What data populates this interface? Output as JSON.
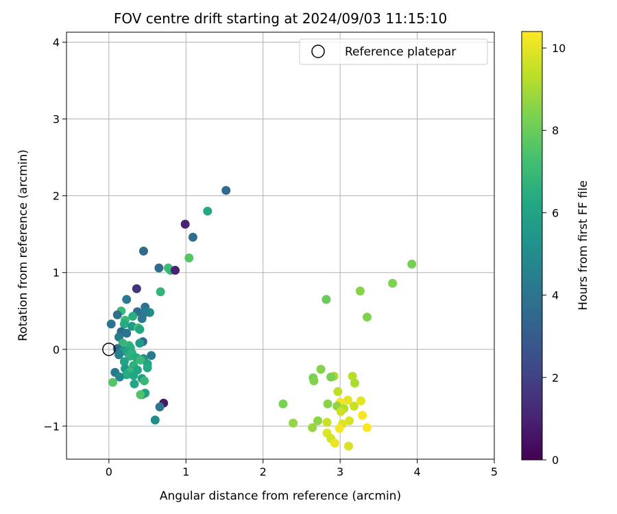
{
  "chart_data": {
    "type": "scatter",
    "title": "FOV centre drift starting at 2024/09/03 11:15:10",
    "xlabel": "Angular distance from reference (arcmin)",
    "ylabel": "Rotation from reference (arcmin)",
    "xlim": [
      -0.55,
      5.0
    ],
    "ylim": [
      -1.43,
      4.13
    ],
    "xticks": [
      0,
      1,
      2,
      3,
      4,
      5
    ],
    "yticks": [
      -1,
      0,
      1,
      2,
      3,
      4
    ],
    "xtick_labels": [
      "0",
      "1",
      "2",
      "3",
      "4",
      "5"
    ],
    "ytick_labels": [
      "−1",
      "0",
      "1",
      "2",
      "3",
      "4"
    ],
    "grid": true,
    "colormap": "viridis",
    "colorbar": {
      "label": "Hours from first FF file",
      "range": [
        0,
        10.4
      ],
      "ticks": [
        0,
        2,
        4,
        6,
        8,
        10
      ],
      "tick_labels": [
        "0",
        "2",
        "4",
        "6",
        "8",
        "10"
      ]
    },
    "legend": {
      "placement": "upper right",
      "entries": [
        {
          "label": "Reference platepar",
          "marker": "open-circle"
        }
      ]
    },
    "reference_point": {
      "x": 0,
      "y": 0
    },
    "points": [
      {
        "x": 1.52,
        "y": 2.07,
        "c": 3.6
      },
      {
        "x": 1.28,
        "y": 1.8,
        "c": 6.3
      },
      {
        "x": 0.99,
        "y": 1.63,
        "c": 1.0
      },
      {
        "x": 1.09,
        "y": 1.46,
        "c": 3.8
      },
      {
        "x": 0.45,
        "y": 1.28,
        "c": 3.6
      },
      {
        "x": 1.04,
        "y": 1.19,
        "c": 7.6
      },
      {
        "x": 0.65,
        "y": 1.06,
        "c": 3.6
      },
      {
        "x": 0.77,
        "y": 1.06,
        "c": 7.2
      },
      {
        "x": 0.8,
        "y": 1.03,
        "c": 6.9
      },
      {
        "x": 0.86,
        "y": 1.03,
        "c": 1.0
      },
      {
        "x": 0.36,
        "y": 0.79,
        "c": 1.5
      },
      {
        "x": 0.67,
        "y": 0.75,
        "c": 6.8
      },
      {
        "x": 0.23,
        "y": 0.65,
        "c": 4.1
      },
      {
        "x": 0.47,
        "y": 0.55,
        "c": 4.0
      },
      {
        "x": 0.16,
        "y": 0.5,
        "c": 7.0
      },
      {
        "x": 0.37,
        "y": 0.49,
        "c": 3.7
      },
      {
        "x": 0.53,
        "y": 0.48,
        "c": 5.0
      },
      {
        "x": 0.47,
        "y": 0.48,
        "c": 4.4
      },
      {
        "x": 0.11,
        "y": 0.45,
        "c": 3.8
      },
      {
        "x": 0.31,
        "y": 0.43,
        "c": 6.5
      },
      {
        "x": 0.43,
        "y": 0.4,
        "c": 4.2
      },
      {
        "x": 0.21,
        "y": 0.38,
        "c": 7.0
      },
      {
        "x": 0.2,
        "y": 0.33,
        "c": 6.4
      },
      {
        "x": 0.03,
        "y": 0.33,
        "c": 4.0
      },
      {
        "x": 0.3,
        "y": 0.3,
        "c": 5.5
      },
      {
        "x": 0.38,
        "y": 0.28,
        "c": 7.3
      },
      {
        "x": 0.4,
        "y": 0.26,
        "c": 6.2
      },
      {
        "x": 0.16,
        "y": 0.23,
        "c": 3.5
      },
      {
        "x": 0.23,
        "y": 0.21,
        "c": 3.9
      },
      {
        "x": 0.13,
        "y": 0.16,
        "c": 4.3
      },
      {
        "x": 0.44,
        "y": 0.1,
        "c": 3.6
      },
      {
        "x": 0.4,
        "y": 0.08,
        "c": 5.6
      },
      {
        "x": 0.18,
        "y": 0.08,
        "c": 6.8
      },
      {
        "x": 0.26,
        "y": 0.05,
        "c": 6.7
      },
      {
        "x": 0.22,
        "y": 0.02,
        "c": 7.0
      },
      {
        "x": 0.28,
        "y": 0.02,
        "c": 6.5
      },
      {
        "x": 0.11,
        "y": 0.01,
        "c": 3.8
      },
      {
        "x": 0.19,
        "y": -0.02,
        "c": 5.5
      },
      {
        "x": 0.24,
        "y": -0.04,
        "c": 6.1
      },
      {
        "x": 0.3,
        "y": -0.05,
        "c": 6.6
      },
      {
        "x": 0.13,
        "y": -0.07,
        "c": 4.5
      },
      {
        "x": 0.55,
        "y": -0.08,
        "c": 4.2
      },
      {
        "x": 0.27,
        "y": -0.09,
        "c": 6.6
      },
      {
        "x": 0.36,
        "y": -0.11,
        "c": 6.3
      },
      {
        "x": 0.45,
        "y": -0.12,
        "c": 5.1
      },
      {
        "x": 0.41,
        "y": -0.14,
        "c": 7.0
      },
      {
        "x": 0.2,
        "y": -0.16,
        "c": 6.0
      },
      {
        "x": 0.5,
        "y": -0.19,
        "c": 6.1
      },
      {
        "x": 0.32,
        "y": -0.21,
        "c": 6.6
      },
      {
        "x": 0.5,
        "y": -0.24,
        "c": 6.3
      },
      {
        "x": 0.21,
        "y": -0.25,
        "c": 5.6
      },
      {
        "x": 0.37,
        "y": -0.27,
        "c": 6.0
      },
      {
        "x": 0.08,
        "y": -0.3,
        "c": 4.2
      },
      {
        "x": 0.27,
        "y": -0.3,
        "c": 7.0
      },
      {
        "x": 0.23,
        "y": -0.33,
        "c": 6.4
      },
      {
        "x": 0.32,
        "y": -0.34,
        "c": 6.2
      },
      {
        "x": 0.14,
        "y": -0.36,
        "c": 4.8
      },
      {
        "x": 0.43,
        "y": -0.38,
        "c": 5.6
      },
      {
        "x": 0.46,
        "y": -0.41,
        "c": 6.9
      },
      {
        "x": 0.05,
        "y": -0.43,
        "c": 7.6
      },
      {
        "x": 0.33,
        "y": -0.45,
        "c": 6.2
      },
      {
        "x": 0.47,
        "y": -0.57,
        "c": 6.0
      },
      {
        "x": 0.43,
        "y": -0.59,
        "c": 5.2
      },
      {
        "x": 0.41,
        "y": -0.59,
        "c": 7.5
      },
      {
        "x": 0.71,
        "y": -0.7,
        "c": 0.7
      },
      {
        "x": 0.66,
        "y": -0.75,
        "c": 4.1
      },
      {
        "x": 0.6,
        "y": -0.92,
        "c": 5.0
      },
      {
        "x": 3.93,
        "y": 1.11,
        "c": 8.2
      },
      {
        "x": 3.68,
        "y": 0.86,
        "c": 8.4
      },
      {
        "x": 3.26,
        "y": 0.76,
        "c": 8.5
      },
      {
        "x": 2.82,
        "y": 0.65,
        "c": 8.0
      },
      {
        "x": 3.35,
        "y": 0.42,
        "c": 8.4
      },
      {
        "x": 2.75,
        "y": -0.26,
        "c": 8.5
      },
      {
        "x": 2.92,
        "y": -0.35,
        "c": 9.1
      },
      {
        "x": 2.88,
        "y": -0.36,
        "c": 8.3
      },
      {
        "x": 3.16,
        "y": -0.35,
        "c": 9.3
      },
      {
        "x": 2.65,
        "y": -0.37,
        "c": 8.2
      },
      {
        "x": 2.66,
        "y": -0.41,
        "c": 8.4
      },
      {
        "x": 3.19,
        "y": -0.44,
        "c": 9.1
      },
      {
        "x": 2.97,
        "y": -0.55,
        "c": 9.4
      },
      {
        "x": 3.1,
        "y": -0.66,
        "c": 10.0
      },
      {
        "x": 3.27,
        "y": -0.67,
        "c": 10.0
      },
      {
        "x": 3.0,
        "y": -0.69,
        "c": 10.2
      },
      {
        "x": 2.26,
        "y": -0.71,
        "c": 8.3
      },
      {
        "x": 2.84,
        "y": -0.71,
        "c": 8.5
      },
      {
        "x": 2.96,
        "y": -0.74,
        "c": 8.6
      },
      {
        "x": 3.18,
        "y": -0.74,
        "c": 9.5
      },
      {
        "x": 3.05,
        "y": -0.77,
        "c": 9.2
      },
      {
        "x": 3.01,
        "y": -0.81,
        "c": 9.6
      },
      {
        "x": 3.29,
        "y": -0.86,
        "c": 10.3
      },
      {
        "x": 2.71,
        "y": -0.93,
        "c": 8.6
      },
      {
        "x": 3.12,
        "y": -0.93,
        "c": 9.8
      },
      {
        "x": 2.83,
        "y": -0.95,
        "c": 9.5
      },
      {
        "x": 3.03,
        "y": -0.97,
        "c": 9.9
      },
      {
        "x": 2.39,
        "y": -0.96,
        "c": 8.7
      },
      {
        "x": 2.64,
        "y": -1.02,
        "c": 8.8
      },
      {
        "x": 2.99,
        "y": -1.03,
        "c": 10.3
      },
      {
        "x": 3.35,
        "y": -1.02,
        "c": 10.4
      },
      {
        "x": 2.83,
        "y": -1.09,
        "c": 9.9
      },
      {
        "x": 2.88,
        "y": -1.16,
        "c": 9.7
      },
      {
        "x": 2.93,
        "y": -1.22,
        "c": 10.1
      },
      {
        "x": 3.11,
        "y": -1.26,
        "c": 9.8
      }
    ]
  }
}
